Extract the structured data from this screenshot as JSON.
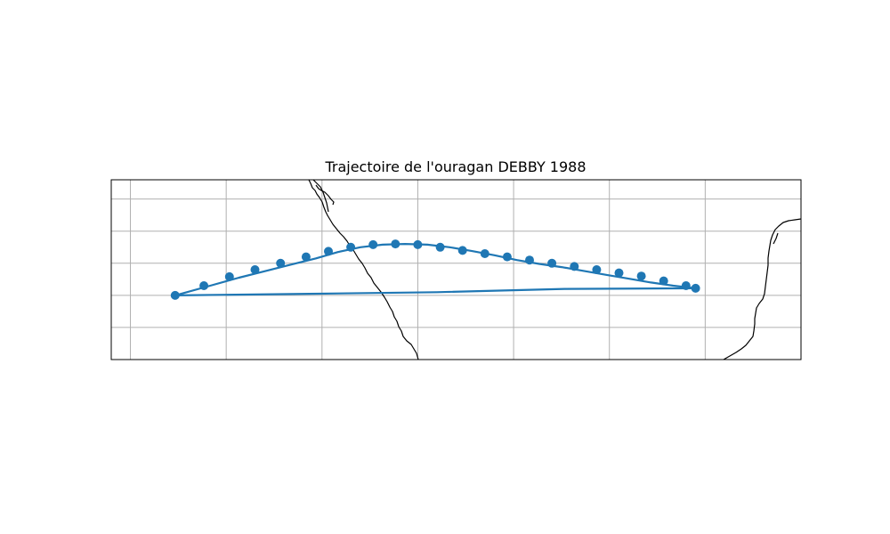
{
  "chart_data": {
    "type": "map-track",
    "title": "Trajectoire de l'ouragan DEBBY 1988",
    "grid": true,
    "track_color": "#1f77b4",
    "coast_color": "#000000",
    "grid_color": "#b0b0b0",
    "track": {
      "outbound": [
        [
          -96.2,
          20.0
        ],
        [
          -95.1,
          20.3
        ],
        [
          -94.2,
          20.55
        ],
        [
          -93.4,
          20.75
        ],
        [
          -92.6,
          20.95
        ],
        [
          -91.8,
          21.15
        ],
        [
          -91.1,
          21.35
        ],
        [
          -90.4,
          21.5
        ],
        [
          -89.7,
          21.58
        ],
        [
          -89.0,
          21.6
        ],
        [
          -88.3,
          21.58
        ],
        [
          -87.6,
          21.5
        ],
        [
          -86.9,
          21.38
        ],
        [
          -86.2,
          21.25
        ],
        [
          -85.5,
          21.1
        ],
        [
          -84.8,
          20.98
        ],
        [
          -84.1,
          20.88
        ],
        [
          -83.4,
          20.76
        ],
        [
          -82.7,
          20.64
        ],
        [
          -82.0,
          20.52
        ],
        [
          -81.3,
          20.4
        ],
        [
          -80.6,
          20.3
        ],
        [
          -79.9,
          20.22
        ]
      ],
      "return": [
        [
          -79.9,
          20.22
        ],
        [
          -84.0,
          20.2
        ],
        [
          -88.0,
          20.1
        ],
        [
          -92.0,
          20.05
        ],
        [
          -96.2,
          20.0
        ]
      ]
    },
    "markers": [
      [
        -96.2,
        20.0
      ],
      [
        -95.3,
        20.3
      ],
      [
        -94.5,
        20.58
      ],
      [
        -93.7,
        20.8
      ],
      [
        -92.9,
        21.0
      ],
      [
        -92.1,
        21.2
      ],
      [
        -91.4,
        21.37
      ],
      [
        -90.7,
        21.5
      ],
      [
        -90.0,
        21.58
      ],
      [
        -89.3,
        21.6
      ],
      [
        -88.6,
        21.58
      ],
      [
        -87.9,
        21.5
      ],
      [
        -87.2,
        21.4
      ],
      [
        -86.5,
        21.3
      ],
      [
        -85.8,
        21.2
      ],
      [
        -85.1,
        21.1
      ],
      [
        -84.4,
        21.0
      ],
      [
        -83.7,
        20.9
      ],
      [
        -83.0,
        20.8
      ],
      [
        -82.3,
        20.7
      ],
      [
        -81.6,
        20.6
      ],
      [
        -80.9,
        20.45
      ],
      [
        -80.2,
        20.3
      ],
      [
        -79.9,
        20.22
      ]
    ],
    "xlim": [
      -98.2,
      -76.6
    ],
    "ylim": [
      18.0,
      23.6
    ],
    "gridlines_lon": [
      -97.6,
      -94.6,
      -91.6,
      -88.6,
      -85.6,
      -82.6,
      -79.6
    ],
    "gridlines_lat": [
      19.0,
      20.0,
      21.0,
      22.0,
      23.0
    ]
  }
}
